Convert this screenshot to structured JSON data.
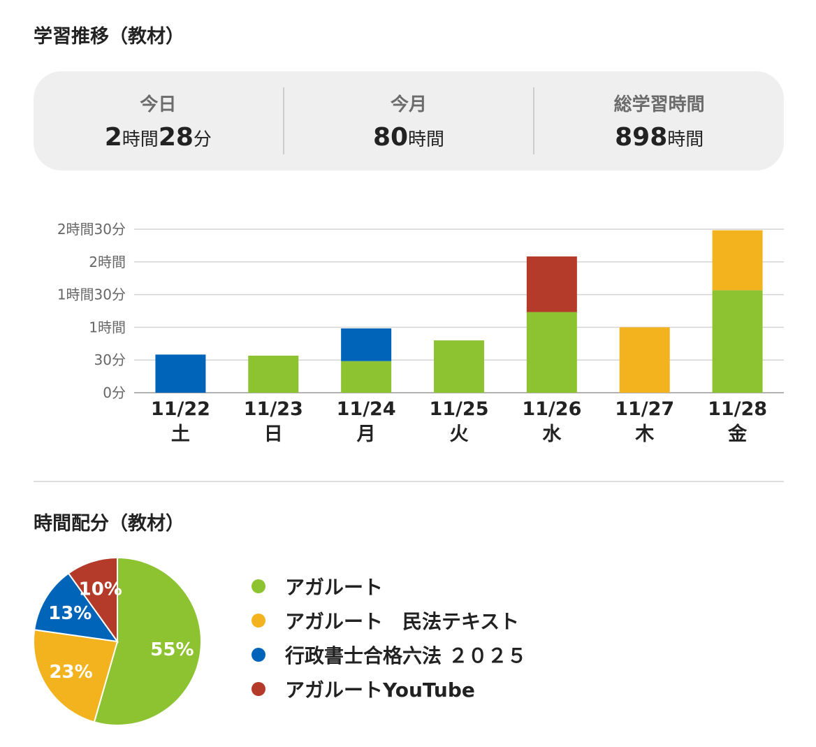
{
  "sections": {
    "trend_title": "学習推移（教材）",
    "allocation_title": "時間配分（教材）"
  },
  "summary": {
    "today": {
      "label": "今日",
      "h": "2",
      "h_unit": "時間",
      "m": "28",
      "m_unit": "分"
    },
    "month": {
      "label": "今月",
      "h": "80",
      "h_unit": "時間"
    },
    "total": {
      "label": "総学習時間",
      "h": "898",
      "h_unit": "時間"
    }
  },
  "colors": {
    "agaroot": "#8dc231",
    "agaroot_minpou": "#f2b31f",
    "gyousei_roppou": "#0064b8",
    "agaroot_youtube": "#b43a2a"
  },
  "chart_data": [
    {
      "type": "bar",
      "stacked": true,
      "categories": [
        "11/22",
        "11/23",
        "11/24",
        "11/25",
        "11/26",
        "11/27",
        "11/28"
      ],
      "weekdays": [
        "土",
        "日",
        "月",
        "火",
        "水",
        "木",
        "金"
      ],
      "y_unit": "minutes",
      "ylim": [
        0,
        150
      ],
      "yticks": [
        {
          "value": 0,
          "label": "0分"
        },
        {
          "value": 30,
          "label": "30分"
        },
        {
          "value": 60,
          "label": "1時間"
        },
        {
          "value": 90,
          "label": "1時間30分"
        },
        {
          "value": 120,
          "label": "2時間"
        },
        {
          "value": 150,
          "label": "2時間30分"
        }
      ],
      "grid": true,
      "series": [
        {
          "name": "アガルート",
          "color": "#8dc231",
          "values": [
            0,
            34,
            29,
            48,
            74,
            0,
            94
          ]
        },
        {
          "name": "アガルート　民法テキスト",
          "color": "#f2b31f",
          "values": [
            0,
            0,
            0,
            0,
            0,
            60,
            55
          ]
        },
        {
          "name": "行政書士合格六法 ２０２５",
          "color": "#0064b8",
          "values": [
            35,
            0,
            30,
            0,
            0,
            0,
            0
          ]
        },
        {
          "name": "アガルートYouTube",
          "color": "#b43a2a",
          "values": [
            0,
            0,
            0,
            0,
            51,
            0,
            0
          ]
        }
      ]
    },
    {
      "type": "pie",
      "slices": [
        {
          "label": "アガルート",
          "value": 55,
          "text": "55%",
          "color": "#8dc231"
        },
        {
          "label": "アガルート　民法テキスト",
          "value": 23,
          "text": "23%",
          "color": "#f2b31f"
        },
        {
          "label": "行政書士合格六法 ２０２５",
          "value": 13,
          "text": "13%",
          "color": "#0064b8"
        },
        {
          "label": "アガルートYouTube",
          "value": 10,
          "text": "10%",
          "color": "#b43a2a"
        }
      ]
    }
  ]
}
